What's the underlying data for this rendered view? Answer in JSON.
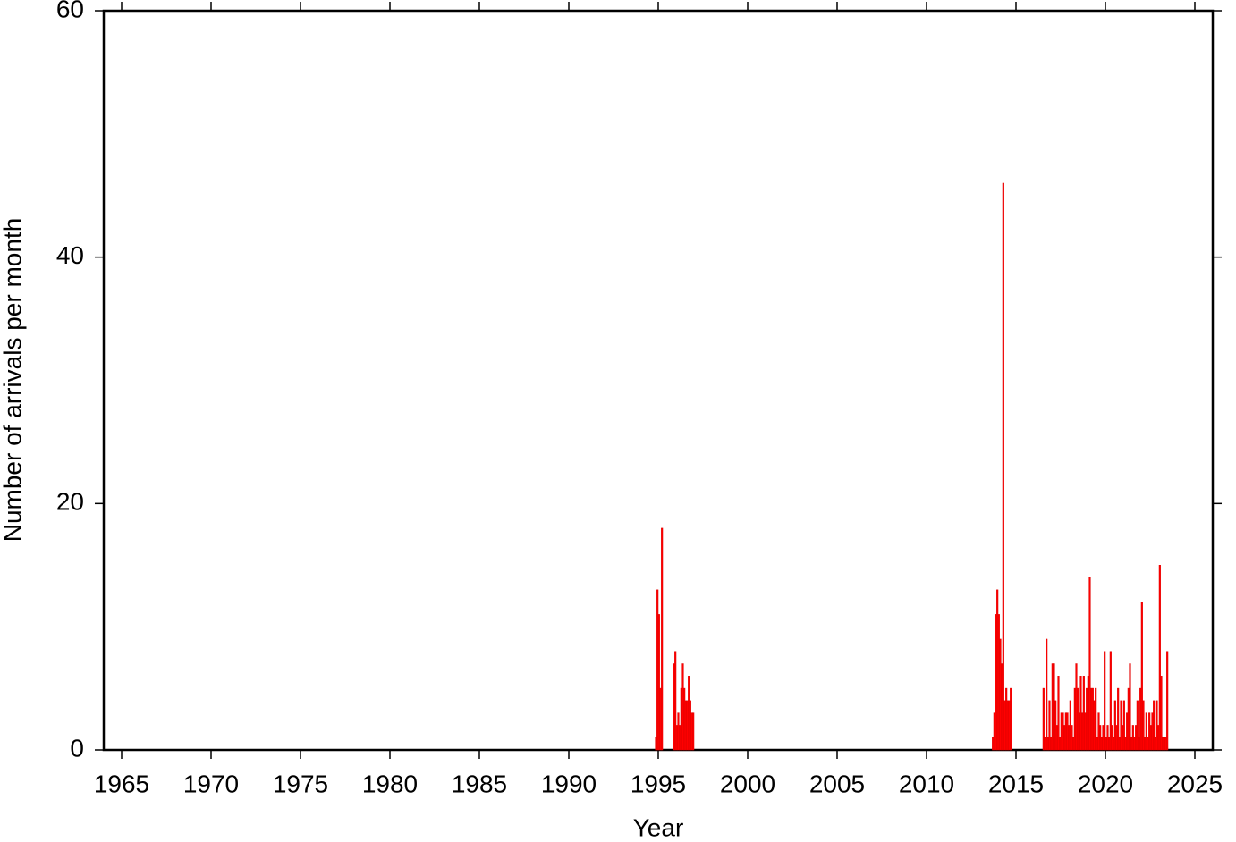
{
  "chart_data": {
    "type": "bar",
    "xlabel": "Year",
    "ylabel": "Number of arrivals per month",
    "color": "#ff0000",
    "xlim": [
      1964,
      2026
    ],
    "xticks": [
      1965,
      1970,
      1975,
      1980,
      1985,
      1990,
      1995,
      2000,
      2005,
      2010,
      2015,
      2020,
      2025
    ],
    "ylim": [
      0,
      60
    ],
    "yticks": [
      0,
      20,
      40,
      60
    ],
    "x": [
      1994.833,
      1994.917,
      1995,
      1995.083,
      1995.167,
      1995.833,
      1995.917,
      1996,
      1996.083,
      1996.167,
      1996.25,
      1996.333,
      1996.417,
      1996.5,
      1996.583,
      1996.667,
      1996.75,
      1996.833,
      1996.917,
      2013.667,
      2013.75,
      2013.833,
      2013.917,
      2014,
      2014.083,
      2014.167,
      2014.25,
      2014.333,
      2014.417,
      2014.5,
      2014.583,
      2014.667,
      2016.5,
      2016.583,
      2016.667,
      2016.75,
      2016.833,
      2016.917,
      2017,
      2017.083,
      2017.167,
      2017.25,
      2017.333,
      2017.417,
      2017.5,
      2017.583,
      2017.667,
      2017.75,
      2017.833,
      2017.917,
      2018,
      2018.083,
      2018.167,
      2018.25,
      2018.333,
      2018.417,
      2018.5,
      2018.583,
      2018.667,
      2018.75,
      2018.833,
      2018.917,
      2019,
      2019.083,
      2019.167,
      2019.25,
      2019.333,
      2019.417,
      2019.5,
      2019.583,
      2019.667,
      2019.75,
      2019.833,
      2019.917,
      2020,
      2020.083,
      2020.167,
      2020.25,
      2020.333,
      2020.417,
      2020.5,
      2020.583,
      2020.667,
      2020.75,
      2020.833,
      2020.917,
      2021,
      2021.083,
      2021.167,
      2021.25,
      2021.333,
      2021.417,
      2021.5,
      2021.583,
      2021.667,
      2021.75,
      2021.833,
      2021.917,
      2022,
      2022.083,
      2022.167,
      2022.25,
      2022.333,
      2022.417,
      2022.5,
      2022.583,
      2022.667,
      2022.75,
      2022.833,
      2022.917,
      2023,
      2023.083,
      2023.167,
      2023.25,
      2023.333,
      2023.417
    ],
    "values": [
      1,
      13,
      11,
      5,
      18,
      7,
      8,
      2,
      3,
      2,
      5,
      7,
      5,
      4,
      4,
      6,
      4,
      3,
      3,
      1,
      3,
      11,
      13,
      11,
      9,
      7,
      46,
      4,
      5,
      4,
      4,
      5,
      5,
      1,
      9,
      1,
      4,
      1,
      7,
      7,
      4,
      2,
      6,
      1,
      3,
      3,
      2,
      3,
      3,
      2,
      4,
      2,
      1,
      5,
      7,
      5,
      3,
      6,
      3,
      6,
      3,
      5,
      6,
      14,
      5,
      5,
      4,
      5,
      1,
      3,
      2,
      1,
      2,
      8,
      1,
      2,
      1,
      8,
      2,
      1,
      4,
      2,
      5,
      1,
      4,
      2,
      4,
      1,
      3,
      5,
      7,
      1,
      2,
      1,
      2,
      4,
      1,
      5,
      12,
      4,
      1,
      3,
      1,
      3,
      2,
      3,
      4,
      1,
      4,
      2,
      15,
      6,
      1,
      1,
      1,
      8
    ]
  }
}
